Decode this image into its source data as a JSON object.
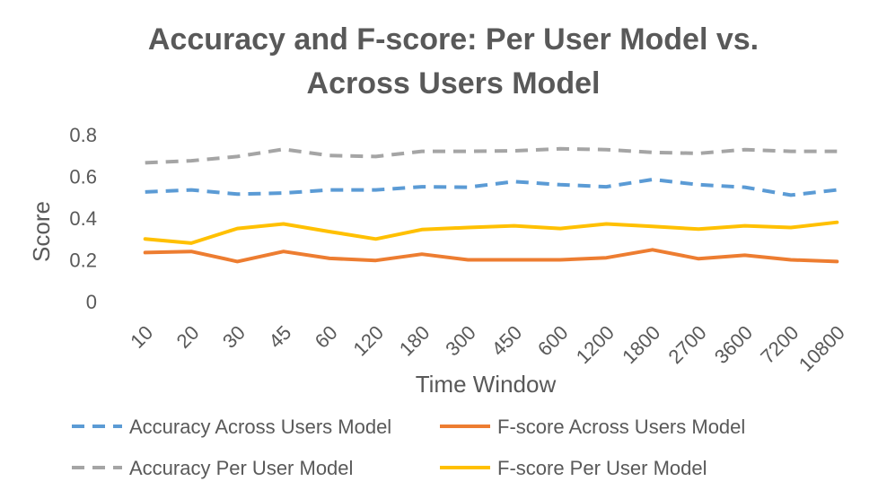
{
  "chart_data": {
    "type": "line",
    "title_lines": [
      "Accuracy and F-score: Per User Model vs.",
      "Across Users Model"
    ],
    "xlabel": "Time Window",
    "ylabel": "Score",
    "categories": [
      "10",
      "20",
      "30",
      "45",
      "60",
      "120",
      "180",
      "300",
      "450",
      "600",
      "1200",
      "1800",
      "2700",
      "3600",
      "7200",
      "10800"
    ],
    "ylim": [
      0,
      0.8
    ],
    "yticks": [
      "0",
      "0.2",
      "0.4",
      "0.6",
      "0.8"
    ],
    "grid": false,
    "legend_position": "bottom",
    "series": [
      {
        "name": "Accuracy Across Users Model",
        "color": "#5b9bd5",
        "dash": true,
        "values": [
          0.525,
          0.535,
          0.515,
          0.52,
          0.535,
          0.535,
          0.55,
          0.548,
          0.575,
          0.56,
          0.55,
          0.585,
          0.56,
          0.548,
          0.51,
          0.535
        ]
      },
      {
        "name": "F-score Across Users Model",
        "color": "#ed7d31",
        "dash": false,
        "values": [
          0.235,
          0.24,
          0.192,
          0.24,
          0.207,
          0.197,
          0.227,
          0.2,
          0.2,
          0.2,
          0.21,
          0.248,
          0.205,
          0.222,
          0.2,
          0.192
        ]
      },
      {
        "name": "Accuracy Per User Model",
        "color": "#a5a5a5",
        "dash": true,
        "values": [
          0.665,
          0.675,
          0.695,
          0.73,
          0.7,
          0.695,
          0.72,
          0.72,
          0.722,
          0.732,
          0.728,
          0.715,
          0.71,
          0.728,
          0.72,
          0.72
        ]
      },
      {
        "name": "F-score Per User Model",
        "color": "#ffc000",
        "dash": false,
        "values": [
          0.3,
          0.28,
          0.35,
          0.372,
          0.335,
          0.3,
          0.345,
          0.355,
          0.363,
          0.35,
          0.372,
          0.36,
          0.347,
          0.363,
          0.355,
          0.38
        ]
      }
    ]
  }
}
